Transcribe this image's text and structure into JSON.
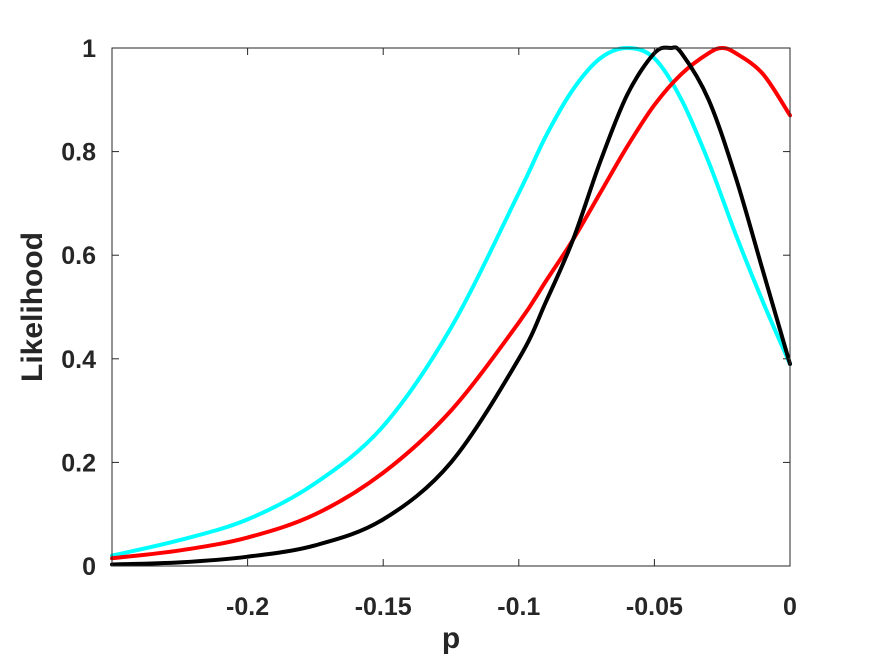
{
  "chart_data": {
    "type": "line",
    "xlabel": "p",
    "ylabel": "Likelihood",
    "xlim": [
      -0.25,
      0
    ],
    "ylim": [
      0,
      1
    ],
    "x_ticks": [
      -0.2,
      -0.15,
      -0.1,
      -0.05,
      0
    ],
    "x_tick_labels": [
      "-0.2",
      "-0.15",
      "-0.1",
      "-0.05",
      "0"
    ],
    "y_ticks": [
      0,
      0.2,
      0.4,
      0.6,
      0.8,
      1
    ],
    "y_tick_labels": [
      "0",
      "0.2",
      "0.4",
      "0.6",
      "0.8",
      "1"
    ],
    "grid": false,
    "legend": "none",
    "series": [
      {
        "color": "#00ffff",
        "x": [
          -0.25,
          -0.225,
          -0.2,
          -0.175,
          -0.15,
          -0.125,
          -0.1,
          -0.09,
          -0.08,
          -0.07,
          -0.06,
          -0.05,
          -0.04,
          -0.03,
          -0.02,
          -0.01,
          0
        ],
        "y": [
          0.02,
          0.05,
          0.09,
          0.16,
          0.27,
          0.46,
          0.72,
          0.83,
          0.92,
          0.98,
          1.0,
          0.98,
          0.9,
          0.78,
          0.64,
          0.51,
          0.39
        ]
      },
      {
        "color": "#ff0000",
        "x": [
          -0.25,
          -0.225,
          -0.2,
          -0.175,
          -0.15,
          -0.125,
          -0.1,
          -0.09,
          -0.08,
          -0.07,
          -0.06,
          -0.05,
          -0.04,
          -0.03,
          -0.025,
          -0.02,
          -0.01,
          0
        ],
        "y": [
          0.015,
          0.03,
          0.055,
          0.1,
          0.18,
          0.3,
          0.47,
          0.55,
          0.63,
          0.72,
          0.81,
          0.89,
          0.95,
          0.99,
          1.0,
          0.99,
          0.95,
          0.87
        ]
      },
      {
        "color": "#000000",
        "x": [
          -0.25,
          -0.225,
          -0.2,
          -0.175,
          -0.15,
          -0.125,
          -0.1,
          -0.09,
          -0.08,
          -0.07,
          -0.06,
          -0.05,
          -0.044,
          -0.04,
          -0.03,
          -0.02,
          -0.01,
          0
        ],
        "y": [
          0.003,
          0.007,
          0.018,
          0.04,
          0.09,
          0.2,
          0.4,
          0.51,
          0.63,
          0.78,
          0.91,
          0.99,
          1.0,
          0.99,
          0.9,
          0.75,
          0.57,
          0.39
        ]
      }
    ]
  }
}
